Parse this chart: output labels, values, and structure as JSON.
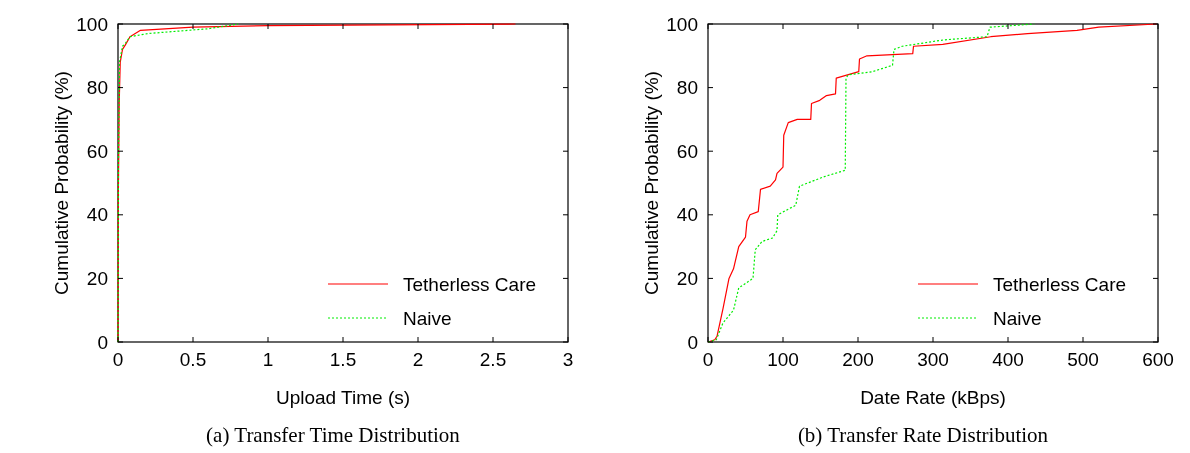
{
  "chart_data": [
    {
      "type": "line",
      "xlabel": "Upload Time (s)",
      "ylabel": "Cumulative Probability (%)",
      "xlim": [
        0,
        3
      ],
      "xticks": [
        0,
        0.5,
        1,
        1.5,
        2,
        2.5,
        3
      ],
      "ylim": [
        0,
        100
      ],
      "yticks": [
        0,
        20,
        40,
        60,
        80,
        100
      ],
      "grid": false,
      "legend": "bottom right",
      "annotations": [
        "(a) Transfer Time Distribution"
      ],
      "series": [
        {
          "name": "Tetherless Care",
          "color": "#ff0000",
          "line_style": "solid",
          "x": [
            0,
            0.002,
            0.008,
            0.015,
            0.03,
            0.05,
            0.08,
            0.15,
            0.5,
            1.0,
            2.65
          ],
          "values": [
            0,
            45,
            75,
            88,
            92,
            93.5,
            96,
            98,
            99,
            99.5,
            100
          ]
        },
        {
          "name": "Naive",
          "color": "#00ee00",
          "line_style": "dotted",
          "x": [
            0,
            0.003,
            0.01,
            0.03,
            0.05,
            0.08,
            0.2,
            0.6,
            0.8
          ],
          "values": [
            0,
            55,
            88,
            93,
            94,
            96,
            97,
            98.5,
            100
          ]
        }
      ]
    },
    {
      "type": "line",
      "xlabel": "Date Rate (kBps)",
      "ylabel": "Cumulative Probability (%)",
      "xlim": [
        0,
        600
      ],
      "xticks": [
        0,
        100,
        200,
        300,
        400,
        500,
        600
      ],
      "ylim": [
        0,
        100
      ],
      "yticks": [
        0,
        20,
        40,
        60,
        80,
        100
      ],
      "grid": false,
      "legend": "bottom right",
      "annotations": [
        "(b) Transfer Rate Distribution"
      ],
      "series": [
        {
          "name": "Tetherless Care",
          "color": "#ff0000",
          "line_style": "solid",
          "x": [
            0,
            9,
            12,
            20,
            28,
            34,
            41,
            50,
            52,
            56,
            67,
            70,
            83,
            90,
            92,
            100,
            101,
            107,
            119,
            137,
            138,
            149,
            158,
            170,
            171,
            201,
            202,
            212,
            273,
            274,
            313,
            377,
            426,
            492,
            521,
            598
          ],
          "values": [
            0,
            0.7,
            1.8,
            10.5,
            20,
            23,
            30,
            33,
            38,
            40,
            41,
            48,
            49,
            51,
            53,
            55,
            65,
            69,
            70,
            70,
            75,
            76,
            77.5,
            78,
            83,
            85,
            89,
            90,
            90.7,
            93,
            93.6,
            96,
            97,
            98,
            99,
            100
          ]
        },
        {
          "name": "Naive",
          "color": "#00ee00",
          "line_style": "dotted",
          "x": [
            0,
            11,
            20,
            34,
            41,
            60,
            63,
            72,
            86,
            92,
            93,
            117,
            122,
            155,
            183,
            184,
            187,
            219,
            246,
            248,
            259,
            314,
            372,
            376,
            435
          ],
          "values": [
            0,
            0.7,
            6,
            10,
            17,
            20,
            29,
            31.6,
            32.7,
            35,
            40,
            43,
            49,
            52,
            54,
            83,
            84,
            85,
            87,
            92,
            93,
            95,
            96,
            99,
            100
          ]
        }
      ]
    }
  ]
}
